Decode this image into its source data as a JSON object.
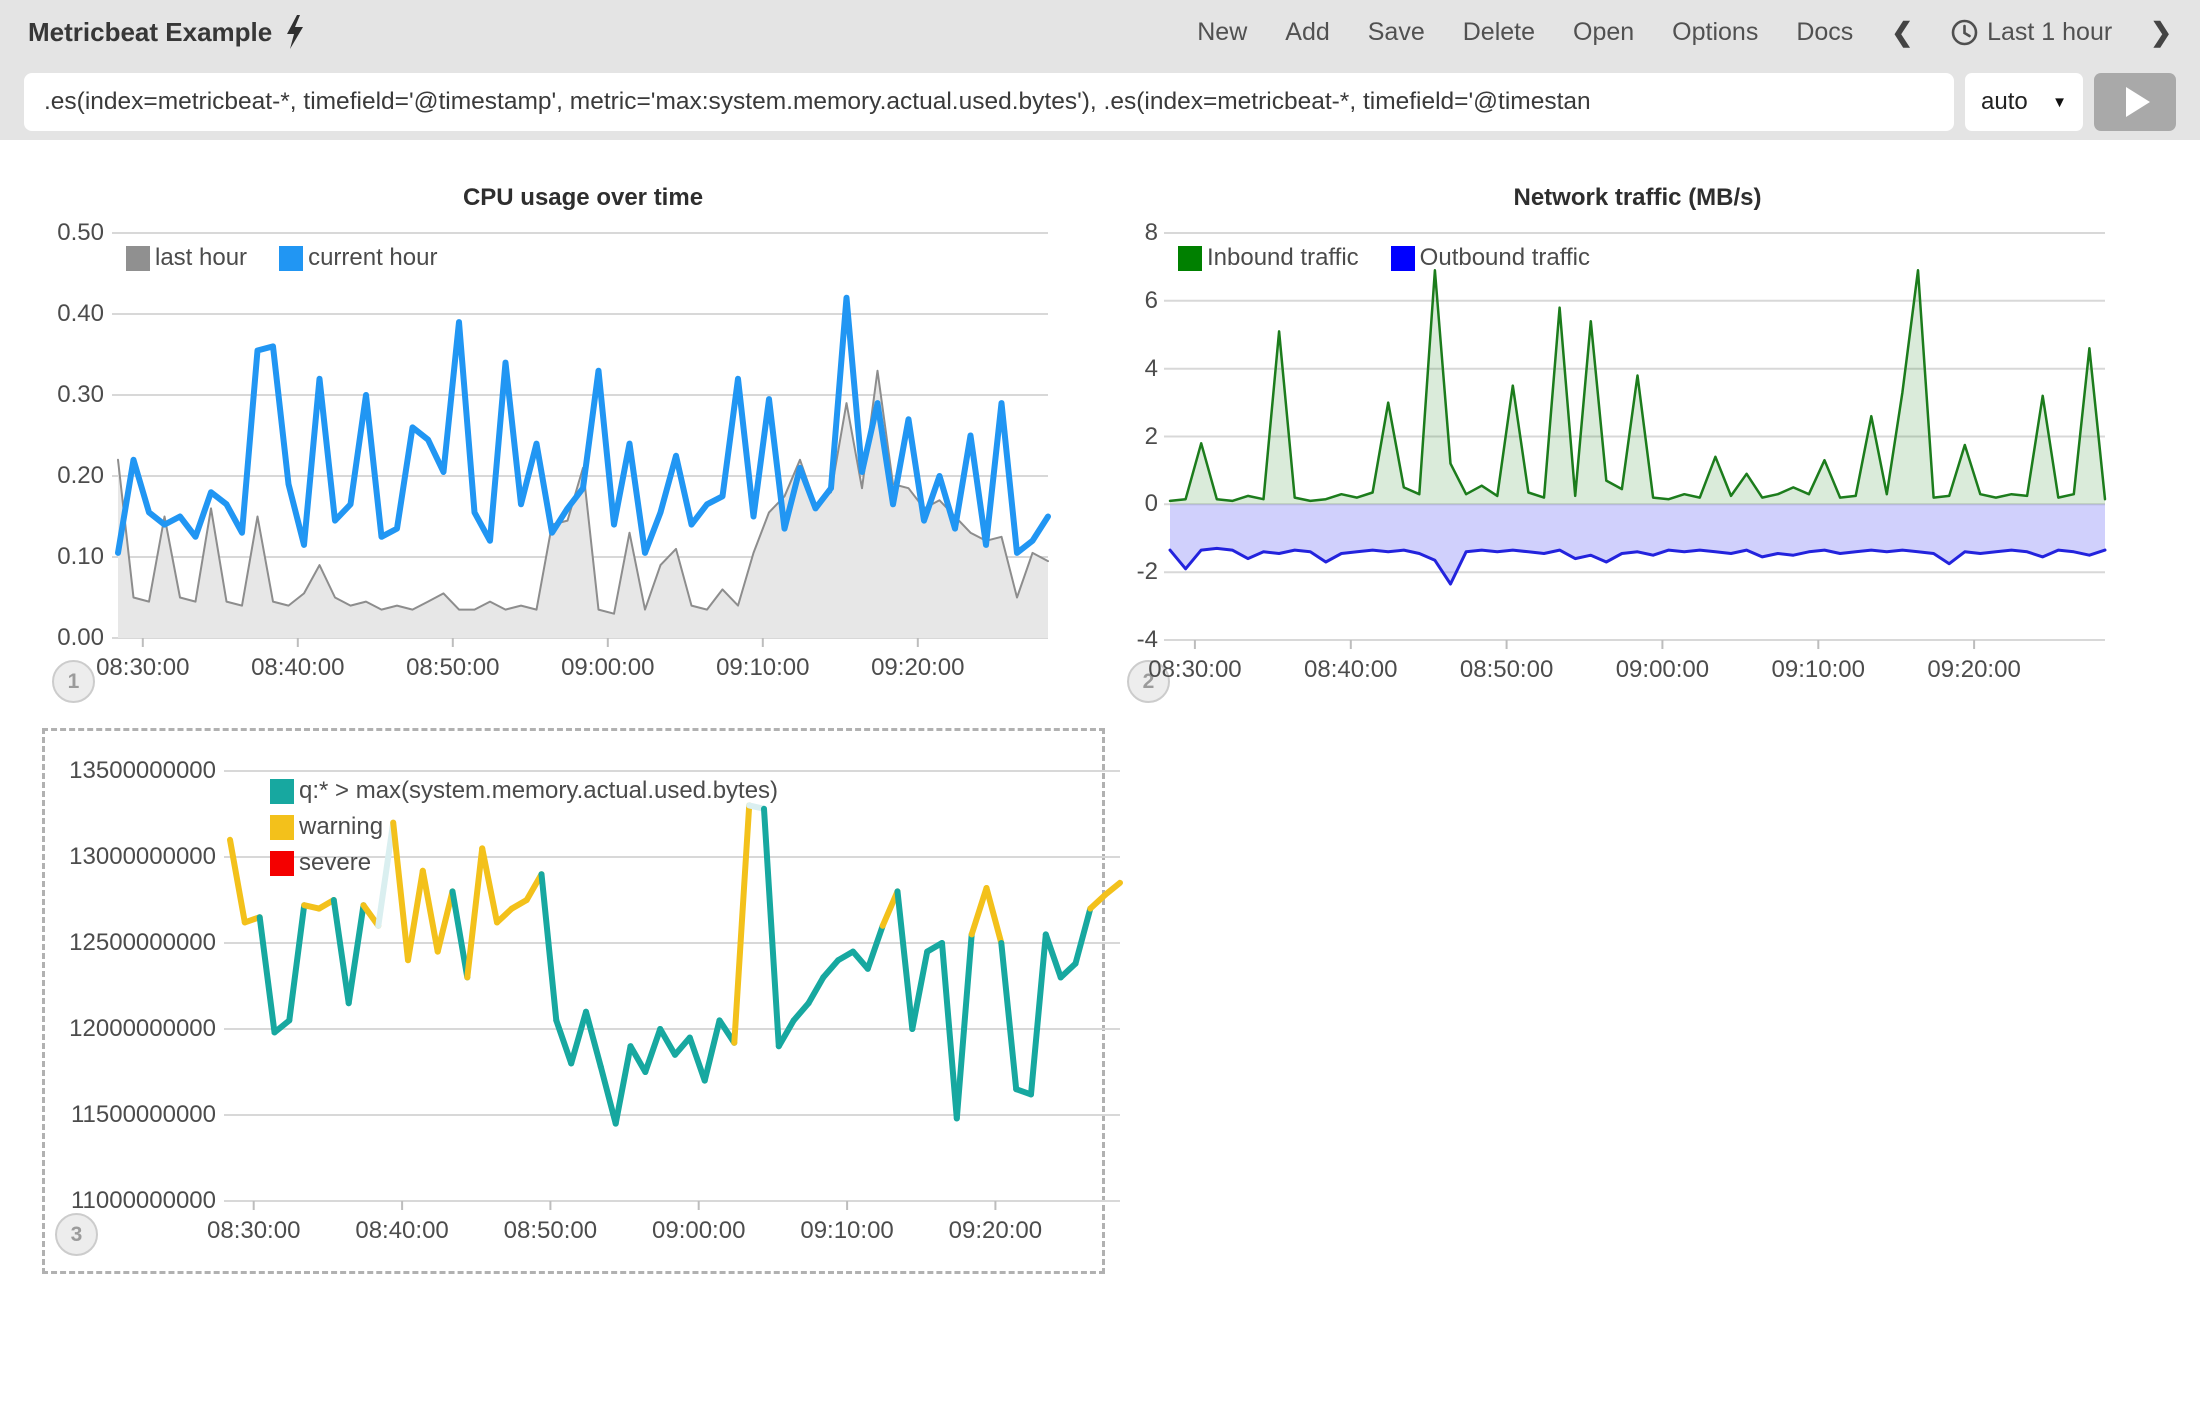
{
  "header": {
    "title": "Metricbeat Example",
    "nav_items": [
      "New",
      "Add",
      "Save",
      "Delete",
      "Open",
      "Options",
      "Docs"
    ],
    "timepicker_label": "Last 1 hour"
  },
  "query_bar": {
    "query": ".es(index=metricbeat-*, timefield='@timestamp', metric='max:system.memory.actual.used.bytes'), .es(index=metricbeat-*, timefield='@timestan",
    "interval_label": "auto"
  },
  "chart_data": [
    {
      "id": "cpu",
      "type": "line",
      "title": "CPU usage over time",
      "badge": "1",
      "x_domain": [
        0,
        60
      ],
      "x_tick_minutes": [
        1.6,
        11.6,
        21.6,
        31.6,
        41.6,
        51.6
      ],
      "x_tick_labels": [
        "08:30:00",
        "08:40:00",
        "08:50:00",
        "09:00:00",
        "09:10:00",
        "09:20:00"
      ],
      "y_domain": [
        0,
        0.5
      ],
      "y_ticks": [
        {
          "v": 0.5,
          "label": "0.50"
        },
        {
          "v": 0.4,
          "label": "0.40"
        },
        {
          "v": 0.3,
          "label": "0.30"
        },
        {
          "v": 0.2,
          "label": "0.20"
        },
        {
          "v": 0.1,
          "label": "0.10"
        },
        {
          "v": 0.0,
          "label": "0.00"
        }
      ],
      "legend": [
        {
          "label": "last hour",
          "color": "#909090"
        },
        {
          "label": "current hour",
          "color": "#2196f3"
        }
      ],
      "series": [
        {
          "name": "last hour",
          "kind": "area",
          "baseline": 0,
          "color": "#8d8d8d",
          "fill": "#e7e7e7",
          "width": 2,
          "values": [
            0.22,
            0.05,
            0.045,
            0.15,
            0.05,
            0.045,
            0.16,
            0.045,
            0.04,
            0.15,
            0.045,
            0.04,
            0.055,
            0.09,
            0.05,
            0.04,
            0.045,
            0.035,
            0.04,
            0.035,
            0.045,
            0.055,
            0.035,
            0.035,
            0.045,
            0.035,
            0.04,
            0.035,
            0.14,
            0.145,
            0.21,
            0.035,
            0.03,
            0.13,
            0.035,
            0.09,
            0.11,
            0.04,
            0.035,
            0.06,
            0.04,
            0.105,
            0.155,
            0.175,
            0.22,
            0.165,
            0.18,
            0.29,
            0.185,
            0.33,
            0.19,
            0.185,
            0.16,
            0.17,
            0.15,
            0.13,
            0.12,
            0.125,
            0.05,
            0.105,
            0.095
          ]
        },
        {
          "name": "current hour",
          "kind": "line",
          "color": "#2196f3",
          "width": 6,
          "values": [
            0.105,
            0.22,
            0.155,
            0.14,
            0.15,
            0.125,
            0.18,
            0.165,
            0.13,
            0.355,
            0.36,
            0.19,
            0.115,
            0.32,
            0.145,
            0.165,
            0.3,
            0.125,
            0.135,
            0.26,
            0.245,
            0.205,
            0.39,
            0.155,
            0.12,
            0.34,
            0.165,
            0.24,
            0.13,
            0.16,
            0.185,
            0.33,
            0.14,
            0.24,
            0.105,
            0.155,
            0.225,
            0.14,
            0.165,
            0.175,
            0.32,
            0.15,
            0.295,
            0.135,
            0.21,
            0.16,
            0.185,
            0.42,
            0.205,
            0.29,
            0.165,
            0.27,
            0.145,
            0.2,
            0.135,
            0.25,
            0.115,
            0.29,
            0.105,
            0.12,
            0.15
          ]
        }
      ]
    },
    {
      "id": "network",
      "type": "area",
      "title": "Network traffic (MB/s)",
      "badge": "2",
      "x_domain": [
        0,
        60
      ],
      "x_tick_minutes": [
        1.6,
        11.6,
        21.6,
        31.6,
        41.6,
        51.6
      ],
      "x_tick_labels": [
        "08:30:00",
        "08:40:00",
        "08:50:00",
        "09:00:00",
        "09:10:00",
        "09:20:00"
      ],
      "y_domain": [
        -4,
        8
      ],
      "y_ticks": [
        {
          "v": 8,
          "label": "8"
        },
        {
          "v": 6,
          "label": "6"
        },
        {
          "v": 4,
          "label": "4"
        },
        {
          "v": 2,
          "label": "2"
        },
        {
          "v": 0,
          "label": "0"
        },
        {
          "v": -2,
          "label": "-2"
        },
        {
          "v": -4,
          "label": "-4"
        }
      ],
      "legend": [
        {
          "label": "Inbound traffic",
          "color": "#008000"
        },
        {
          "label": "Outbound traffic",
          "color": "#0000ff"
        }
      ],
      "series": [
        {
          "name": "Inbound traffic",
          "kind": "area",
          "baseline": 0,
          "color": "#1c7c1c",
          "fill": "rgba(34,139,34,0.17)",
          "width": 2.5,
          "values": [
            0.1,
            0.15,
            1.8,
            0.15,
            0.1,
            0.25,
            0.15,
            5.1,
            0.2,
            0.1,
            0.15,
            0.3,
            0.2,
            0.35,
            3.0,
            0.5,
            0.3,
            6.9,
            1.2,
            0.3,
            0.55,
            0.25,
            3.5,
            0.35,
            0.2,
            5.8,
            0.25,
            5.4,
            0.7,
            0.45,
            3.8,
            0.2,
            0.15,
            0.3,
            0.2,
            1.4,
            0.25,
            0.9,
            0.2,
            0.3,
            0.5,
            0.3,
            1.3,
            0.2,
            0.25,
            2.6,
            0.3,
            3.3,
            6.9,
            0.2,
            0.25,
            1.75,
            0.3,
            0.2,
            0.3,
            0.25,
            3.2,
            0.2,
            0.3,
            4.6,
            0.15
          ]
        },
        {
          "name": "Outbound traffic",
          "kind": "area",
          "baseline": 0,
          "color": "#2323dd",
          "fill": "rgba(80,80,245,0.27)",
          "width": 3,
          "values": [
            -1.35,
            -1.9,
            -1.35,
            -1.3,
            -1.35,
            -1.6,
            -1.4,
            -1.45,
            -1.35,
            -1.4,
            -1.7,
            -1.45,
            -1.4,
            -1.35,
            -1.4,
            -1.35,
            -1.45,
            -1.65,
            -2.35,
            -1.4,
            -1.35,
            -1.4,
            -1.35,
            -1.4,
            -1.45,
            -1.35,
            -1.6,
            -1.5,
            -1.7,
            -1.45,
            -1.4,
            -1.5,
            -1.35,
            -1.4,
            -1.35,
            -1.4,
            -1.45,
            -1.35,
            -1.55,
            -1.45,
            -1.5,
            -1.4,
            -1.35,
            -1.45,
            -1.4,
            -1.35,
            -1.4,
            -1.35,
            -1.4,
            -1.45,
            -1.75,
            -1.4,
            -1.45,
            -1.4,
            -1.35,
            -1.4,
            -1.55,
            -1.35,
            -1.4,
            -1.5,
            -1.35
          ]
        }
      ]
    },
    {
      "id": "memory",
      "type": "line",
      "title": "",
      "badge": "3",
      "selected": true,
      "x_domain": [
        0,
        60
      ],
      "x_tick_minutes": [
        1.6,
        11.6,
        21.6,
        31.6,
        41.6,
        51.6
      ],
      "x_tick_labels": [
        "08:30:00",
        "08:40:00",
        "08:50:00",
        "09:00:00",
        "09:10:00",
        "09:20:00"
      ],
      "y_domain": [
        11000000000,
        13500000000
      ],
      "y_ticks": [
        {
          "v": 13500000000,
          "label": "13500000000"
        },
        {
          "v": 13000000000,
          "label": "13000000000"
        },
        {
          "v": 12500000000,
          "label": "12500000000"
        },
        {
          "v": 12000000000,
          "label": "12000000000"
        },
        {
          "v": 11500000000,
          "label": "11500000000"
        },
        {
          "v": 11000000000,
          "label": "11000000000"
        }
      ],
      "legend": [
        {
          "label": "q:* > max(system.memory.actual.used.bytes)",
          "color": "#17a8a0"
        },
        {
          "label": "warning",
          "color": "#f3c11b"
        },
        {
          "label": "severe",
          "color": "#f40000"
        }
      ],
      "series": [
        {
          "name": "q:* > max(system.memory.actual.used.bytes)",
          "kind": "banded-line",
          "width": 6,
          "bands": [
            {
              "max": 12600000000,
              "color": "#17a8a0"
            },
            {
              "max": 12880000000,
              "color": "#f3c11b"
            },
            {
              "max": 99999999999,
              "color": "#daeff0"
            }
          ],
          "values": [
            13100000000,
            12620000000,
            12650000000,
            11980000000,
            12050000000,
            12720000000,
            12700000000,
            12750000000,
            12150000000,
            12720000000,
            12600000000,
            13200000000,
            12400000000,
            12920000000,
            12450000000,
            12800000000,
            12300000000,
            13050000000,
            12620000000,
            12700000000,
            12750000000,
            12900000000,
            12050000000,
            11800000000,
            12100000000,
            11780000000,
            11450000000,
            11900000000,
            11750000000,
            12000000000,
            11850000000,
            11950000000,
            11700000000,
            12050000000,
            11920000000,
            13300000000,
            13280000000,
            11900000000,
            12050000000,
            12150000000,
            12300000000,
            12400000000,
            12450000000,
            12350000000,
            12600000000,
            12800000000,
            12000000000,
            12450000000,
            12500000000,
            11480000000,
            12550000000,
            12820000000,
            12500000000,
            11650000000,
            11620000000,
            12550000000,
            12300000000,
            12380000000,
            12700000000,
            12780000000,
            12850000000
          ]
        }
      ]
    }
  ]
}
